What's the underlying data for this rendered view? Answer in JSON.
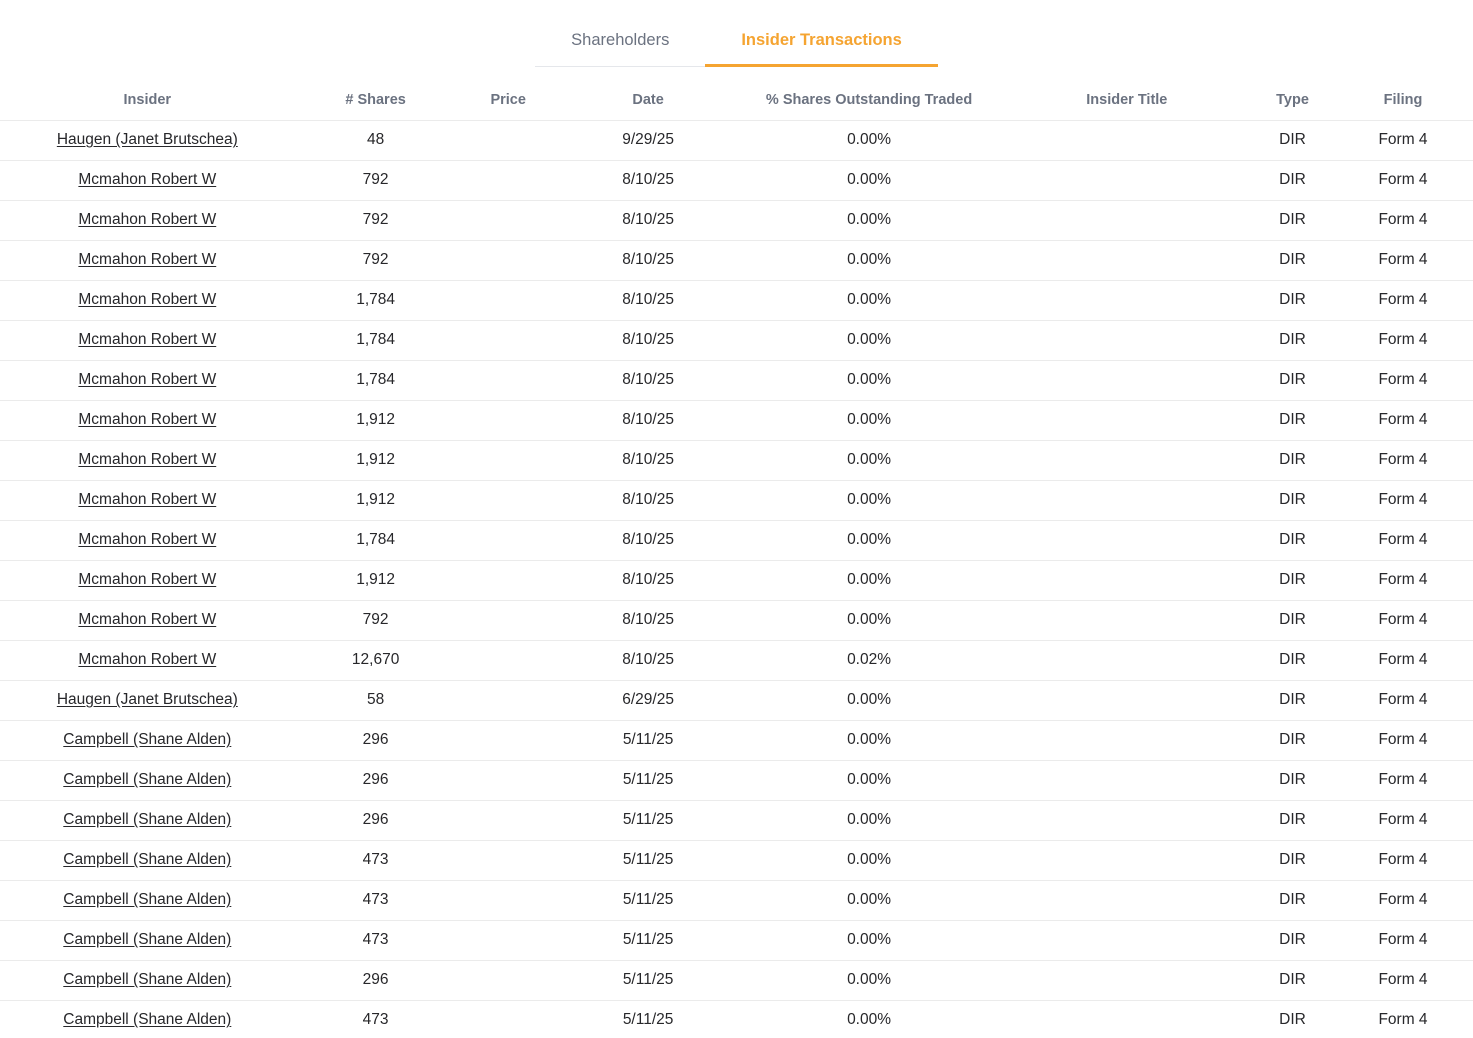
{
  "colors": {
    "accent": "#f5a431",
    "inactive_tab": "#6b7280",
    "row_text": "#27272a",
    "divider": "#ebebeb"
  },
  "tabs": [
    {
      "label": "Shareholders",
      "active": false
    },
    {
      "label": "Insider Transactions",
      "active": true
    }
  ],
  "table": {
    "columns": [
      {
        "key": "insider",
        "label": "Insider"
      },
      {
        "key": "shares",
        "label": "# Shares"
      },
      {
        "key": "price",
        "label": "Price"
      },
      {
        "key": "date",
        "label": "Date"
      },
      {
        "key": "pct_traded",
        "label": "% Shares Outstanding Traded"
      },
      {
        "key": "insider_title",
        "label": "Insider Title"
      },
      {
        "key": "type",
        "label": "Type"
      },
      {
        "key": "filing",
        "label": "Filing"
      }
    ],
    "rows": [
      {
        "insider": "Haugen (Janet Brutschea)",
        "shares": "48",
        "price": "",
        "date": "9/29/25",
        "pct_traded": "0.00%",
        "insider_title": "",
        "type": "DIR",
        "filing": "Form 4"
      },
      {
        "insider": "Mcmahon Robert W",
        "shares": "792",
        "price": "",
        "date": "8/10/25",
        "pct_traded": "0.00%",
        "insider_title": "",
        "type": "DIR",
        "filing": "Form 4"
      },
      {
        "insider": "Mcmahon Robert W",
        "shares": "792",
        "price": "",
        "date": "8/10/25",
        "pct_traded": "0.00%",
        "insider_title": "",
        "type": "DIR",
        "filing": "Form 4"
      },
      {
        "insider": "Mcmahon Robert W",
        "shares": "792",
        "price": "",
        "date": "8/10/25",
        "pct_traded": "0.00%",
        "insider_title": "",
        "type": "DIR",
        "filing": "Form 4"
      },
      {
        "insider": "Mcmahon Robert W",
        "shares": "1,784",
        "price": "",
        "date": "8/10/25",
        "pct_traded": "0.00%",
        "insider_title": "",
        "type": "DIR",
        "filing": "Form 4"
      },
      {
        "insider": "Mcmahon Robert W",
        "shares": "1,784",
        "price": "",
        "date": "8/10/25",
        "pct_traded": "0.00%",
        "insider_title": "",
        "type": "DIR",
        "filing": "Form 4"
      },
      {
        "insider": "Mcmahon Robert W",
        "shares": "1,784",
        "price": "",
        "date": "8/10/25",
        "pct_traded": "0.00%",
        "insider_title": "",
        "type": "DIR",
        "filing": "Form 4"
      },
      {
        "insider": "Mcmahon Robert W",
        "shares": "1,912",
        "price": "",
        "date": "8/10/25",
        "pct_traded": "0.00%",
        "insider_title": "",
        "type": "DIR",
        "filing": "Form 4"
      },
      {
        "insider": "Mcmahon Robert W",
        "shares": "1,912",
        "price": "",
        "date": "8/10/25",
        "pct_traded": "0.00%",
        "insider_title": "",
        "type": "DIR",
        "filing": "Form 4"
      },
      {
        "insider": "Mcmahon Robert W",
        "shares": "1,912",
        "price": "",
        "date": "8/10/25",
        "pct_traded": "0.00%",
        "insider_title": "",
        "type": "DIR",
        "filing": "Form 4"
      },
      {
        "insider": "Mcmahon Robert W",
        "shares": "1,784",
        "price": "",
        "date": "8/10/25",
        "pct_traded": "0.00%",
        "insider_title": "",
        "type": "DIR",
        "filing": "Form 4"
      },
      {
        "insider": "Mcmahon Robert W",
        "shares": "1,912",
        "price": "",
        "date": "8/10/25",
        "pct_traded": "0.00%",
        "insider_title": "",
        "type": "DIR",
        "filing": "Form 4"
      },
      {
        "insider": "Mcmahon Robert W",
        "shares": "792",
        "price": "",
        "date": "8/10/25",
        "pct_traded": "0.00%",
        "insider_title": "",
        "type": "DIR",
        "filing": "Form 4"
      },
      {
        "insider": "Mcmahon Robert W",
        "shares": "12,670",
        "price": "",
        "date": "8/10/25",
        "pct_traded": "0.02%",
        "insider_title": "",
        "type": "DIR",
        "filing": "Form 4"
      },
      {
        "insider": "Haugen (Janet Brutschea)",
        "shares": "58",
        "price": "",
        "date": "6/29/25",
        "pct_traded": "0.00%",
        "insider_title": "",
        "type": "DIR",
        "filing": "Form 4"
      },
      {
        "insider": "Campbell (Shane Alden)",
        "shares": "296",
        "price": "",
        "date": "5/11/25",
        "pct_traded": "0.00%",
        "insider_title": "",
        "type": "DIR",
        "filing": "Form 4"
      },
      {
        "insider": "Campbell (Shane Alden)",
        "shares": "296",
        "price": "",
        "date": "5/11/25",
        "pct_traded": "0.00%",
        "insider_title": "",
        "type": "DIR",
        "filing": "Form 4"
      },
      {
        "insider": "Campbell (Shane Alden)",
        "shares": "296",
        "price": "",
        "date": "5/11/25",
        "pct_traded": "0.00%",
        "insider_title": "",
        "type": "DIR",
        "filing": "Form 4"
      },
      {
        "insider": "Campbell (Shane Alden)",
        "shares": "473",
        "price": "",
        "date": "5/11/25",
        "pct_traded": "0.00%",
        "insider_title": "",
        "type": "DIR",
        "filing": "Form 4"
      },
      {
        "insider": "Campbell (Shane Alden)",
        "shares": "473",
        "price": "",
        "date": "5/11/25",
        "pct_traded": "0.00%",
        "insider_title": "",
        "type": "DIR",
        "filing": "Form 4"
      },
      {
        "insider": "Campbell (Shane Alden)",
        "shares": "473",
        "price": "",
        "date": "5/11/25",
        "pct_traded": "0.00%",
        "insider_title": "",
        "type": "DIR",
        "filing": "Form 4"
      },
      {
        "insider": "Campbell (Shane Alden)",
        "shares": "296",
        "price": "",
        "date": "5/11/25",
        "pct_traded": "0.00%",
        "insider_title": "",
        "type": "DIR",
        "filing": "Form 4"
      },
      {
        "insider": "Campbell (Shane Alden)",
        "shares": "473",
        "price": "",
        "date": "5/11/25",
        "pct_traded": "0.00%",
        "insider_title": "",
        "type": "DIR",
        "filing": "Form 4"
      }
    ]
  }
}
